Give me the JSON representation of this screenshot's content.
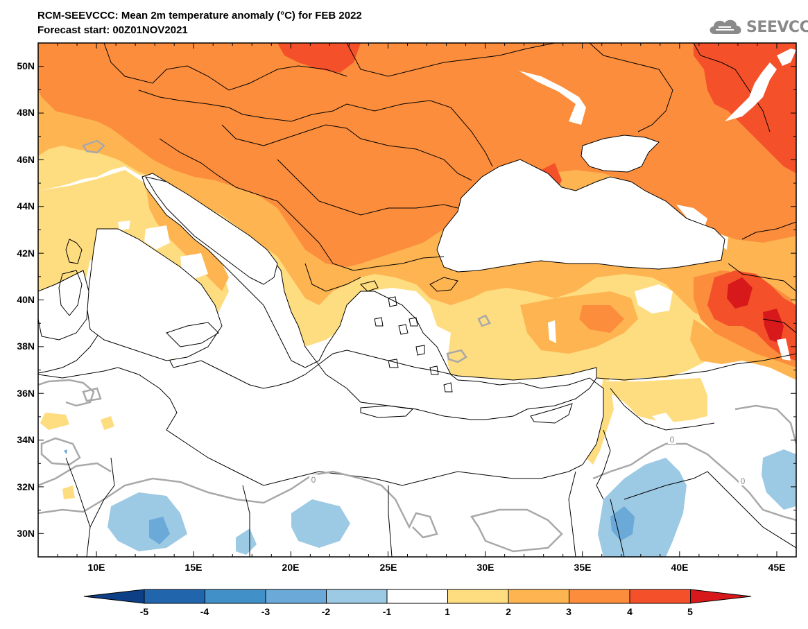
{
  "header": {
    "title_line1": "RCM-SEEVCCC: Mean 2m temperature anomaly (°C) for FEB 2022",
    "title_line2": "Forecast start: 00Z01NOV2021"
  },
  "logo": {
    "text": "SEEVCCC",
    "icon": "cloud-icon"
  },
  "map": {
    "lon_range": [
      7,
      46
    ],
    "lat_range": [
      29,
      51
    ],
    "lat_labels": [
      "50N",
      "48N",
      "46N",
      "44N",
      "42N",
      "40N",
      "38N",
      "36N",
      "34N",
      "32N",
      "30N"
    ],
    "lon_labels": [
      "10E",
      "15E",
      "20E",
      "25E",
      "30E",
      "35E",
      "40E",
      "45E"
    ],
    "contour_label": "0"
  },
  "colorbar": {
    "levels": [
      "-5",
      "-4",
      "-3",
      "-2",
      "-1",
      "1",
      "2",
      "3",
      "4",
      "5"
    ],
    "colors": [
      "#0d3f86",
      "#2166ac",
      "#4190c8",
      "#6aa9d8",
      "#9cc9e4",
      "#ffffff",
      "#fedc80",
      "#fdb451",
      "#fb8d3c",
      "#f4512a",
      "#d7191c"
    ]
  }
}
